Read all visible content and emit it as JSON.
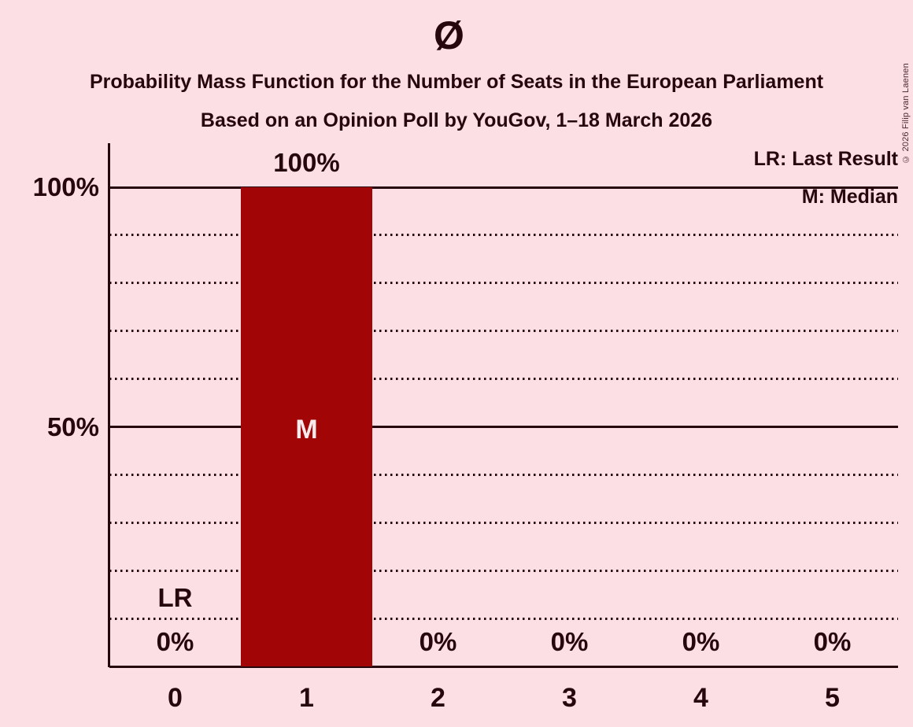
{
  "header": {
    "title": "Ø",
    "subtitle1": "Probability Mass Function for the Number of Seats in the European Parliament",
    "subtitle2": "Based on an Opinion Poll by YouGov, 1–18 March 2026"
  },
  "legend": {
    "lr": "LR: Last Result",
    "m": "M: Median"
  },
  "footer": {
    "copyright": "© 2026 Filip van Laenen"
  },
  "colors": {
    "background": "#FCDFE4",
    "bar": "#A10505",
    "text": "#26070E",
    "bar_label": "#F8E9EC"
  },
  "chart_data": {
    "type": "bar",
    "title": "Ø",
    "subtitle": "Probability Mass Function for the Number of Seats in the European Parliament",
    "source_note": "Based on an Opinion Poll by YouGov, 1–18 March 2026",
    "xlabel": "",
    "ylabel": "",
    "categories": [
      "0",
      "1",
      "2",
      "3",
      "4",
      "5"
    ],
    "values": [
      0,
      100,
      0,
      0,
      0,
      0
    ],
    "value_labels": [
      "0%",
      "100%",
      "0%",
      "0%",
      "0%",
      "0%"
    ],
    "ylim": [
      0,
      100
    ],
    "ytick_labels": [
      {
        "value": 100,
        "text": "100%"
      },
      {
        "value": 50,
        "text": "50%"
      }
    ],
    "solid_gridlines": [
      100,
      50,
      0
    ],
    "dotted_gridlines": [
      90,
      80,
      70,
      60,
      40,
      30,
      20,
      10
    ],
    "grid": "on",
    "legend_position": "top-right",
    "legend_entries": [
      "LR: Last Result",
      "M: Median"
    ],
    "annotations": {
      "median_category": "1",
      "median_label": "M",
      "last_result_category": "0",
      "last_result_label": "LR"
    }
  }
}
